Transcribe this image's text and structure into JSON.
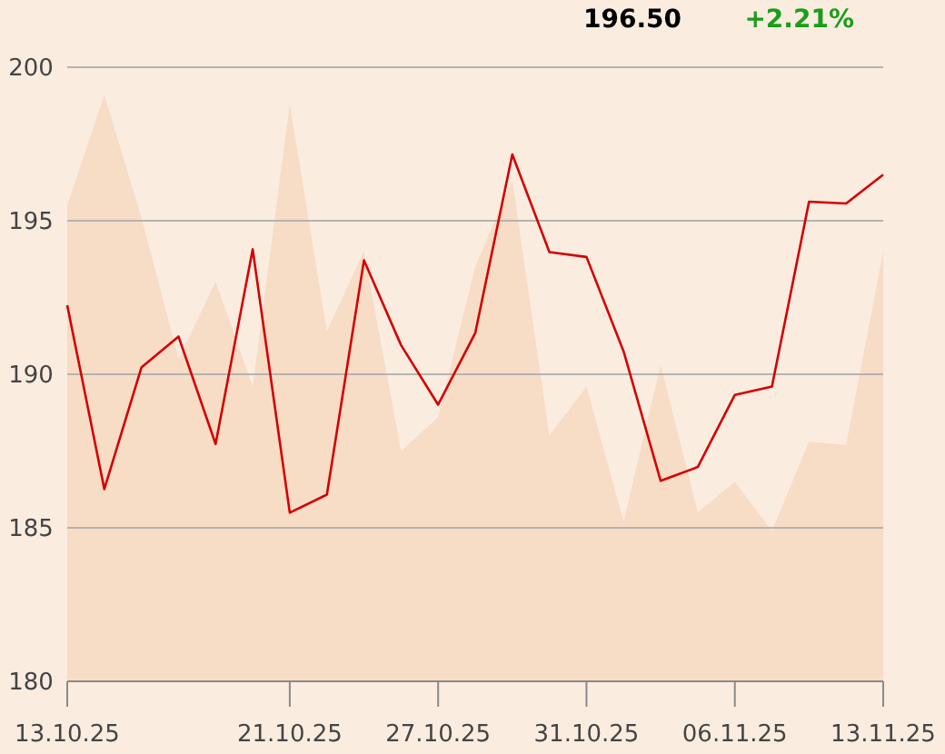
{
  "chart_data": {
    "type": "line",
    "categories": [
      "13.10.25",
      null,
      null,
      null,
      null,
      null,
      "21.10.25",
      null,
      null,
      null,
      "27.10.25",
      null,
      null,
      null,
      "31.10.25",
      null,
      null,
      null,
      "06.11.25",
      null,
      null,
      null,
      "13.11.25"
    ],
    "series": [
      {
        "type": "area",
        "color": "#f7dcc6",
        "values": [
          195.5,
          199.1,
          195.1,
          190.5,
          193.0,
          189.6,
          198.8,
          191.4,
          194.0,
          187.5,
          188.6,
          193.5,
          196.3,
          188.0,
          189.6,
          185.2,
          190.3,
          185.5,
          186.5,
          184.9,
          187.8,
          187.7,
          194.0
        ]
      },
      {
        "color": "#d40000",
        "values": [
          192.25,
          186.26,
          190.22,
          191.23,
          187.73,
          194.07,
          185.49,
          186.08,
          193.71,
          190.95,
          189.01,
          191.34,
          197.16,
          193.98,
          193.82,
          190.75,
          186.53,
          186.98,
          189.33,
          189.6,
          195.62,
          195.56,
          196.5
        ]
      }
    ],
    "ylim": [
      180,
      200
    ],
    "yticks": [
      180,
      185,
      190,
      195,
      200
    ],
    "grid": "y",
    "marker": "none",
    "line_style": "solid",
    "annotations": [
      "196.50",
      "+2.21%"
    ]
  }
}
